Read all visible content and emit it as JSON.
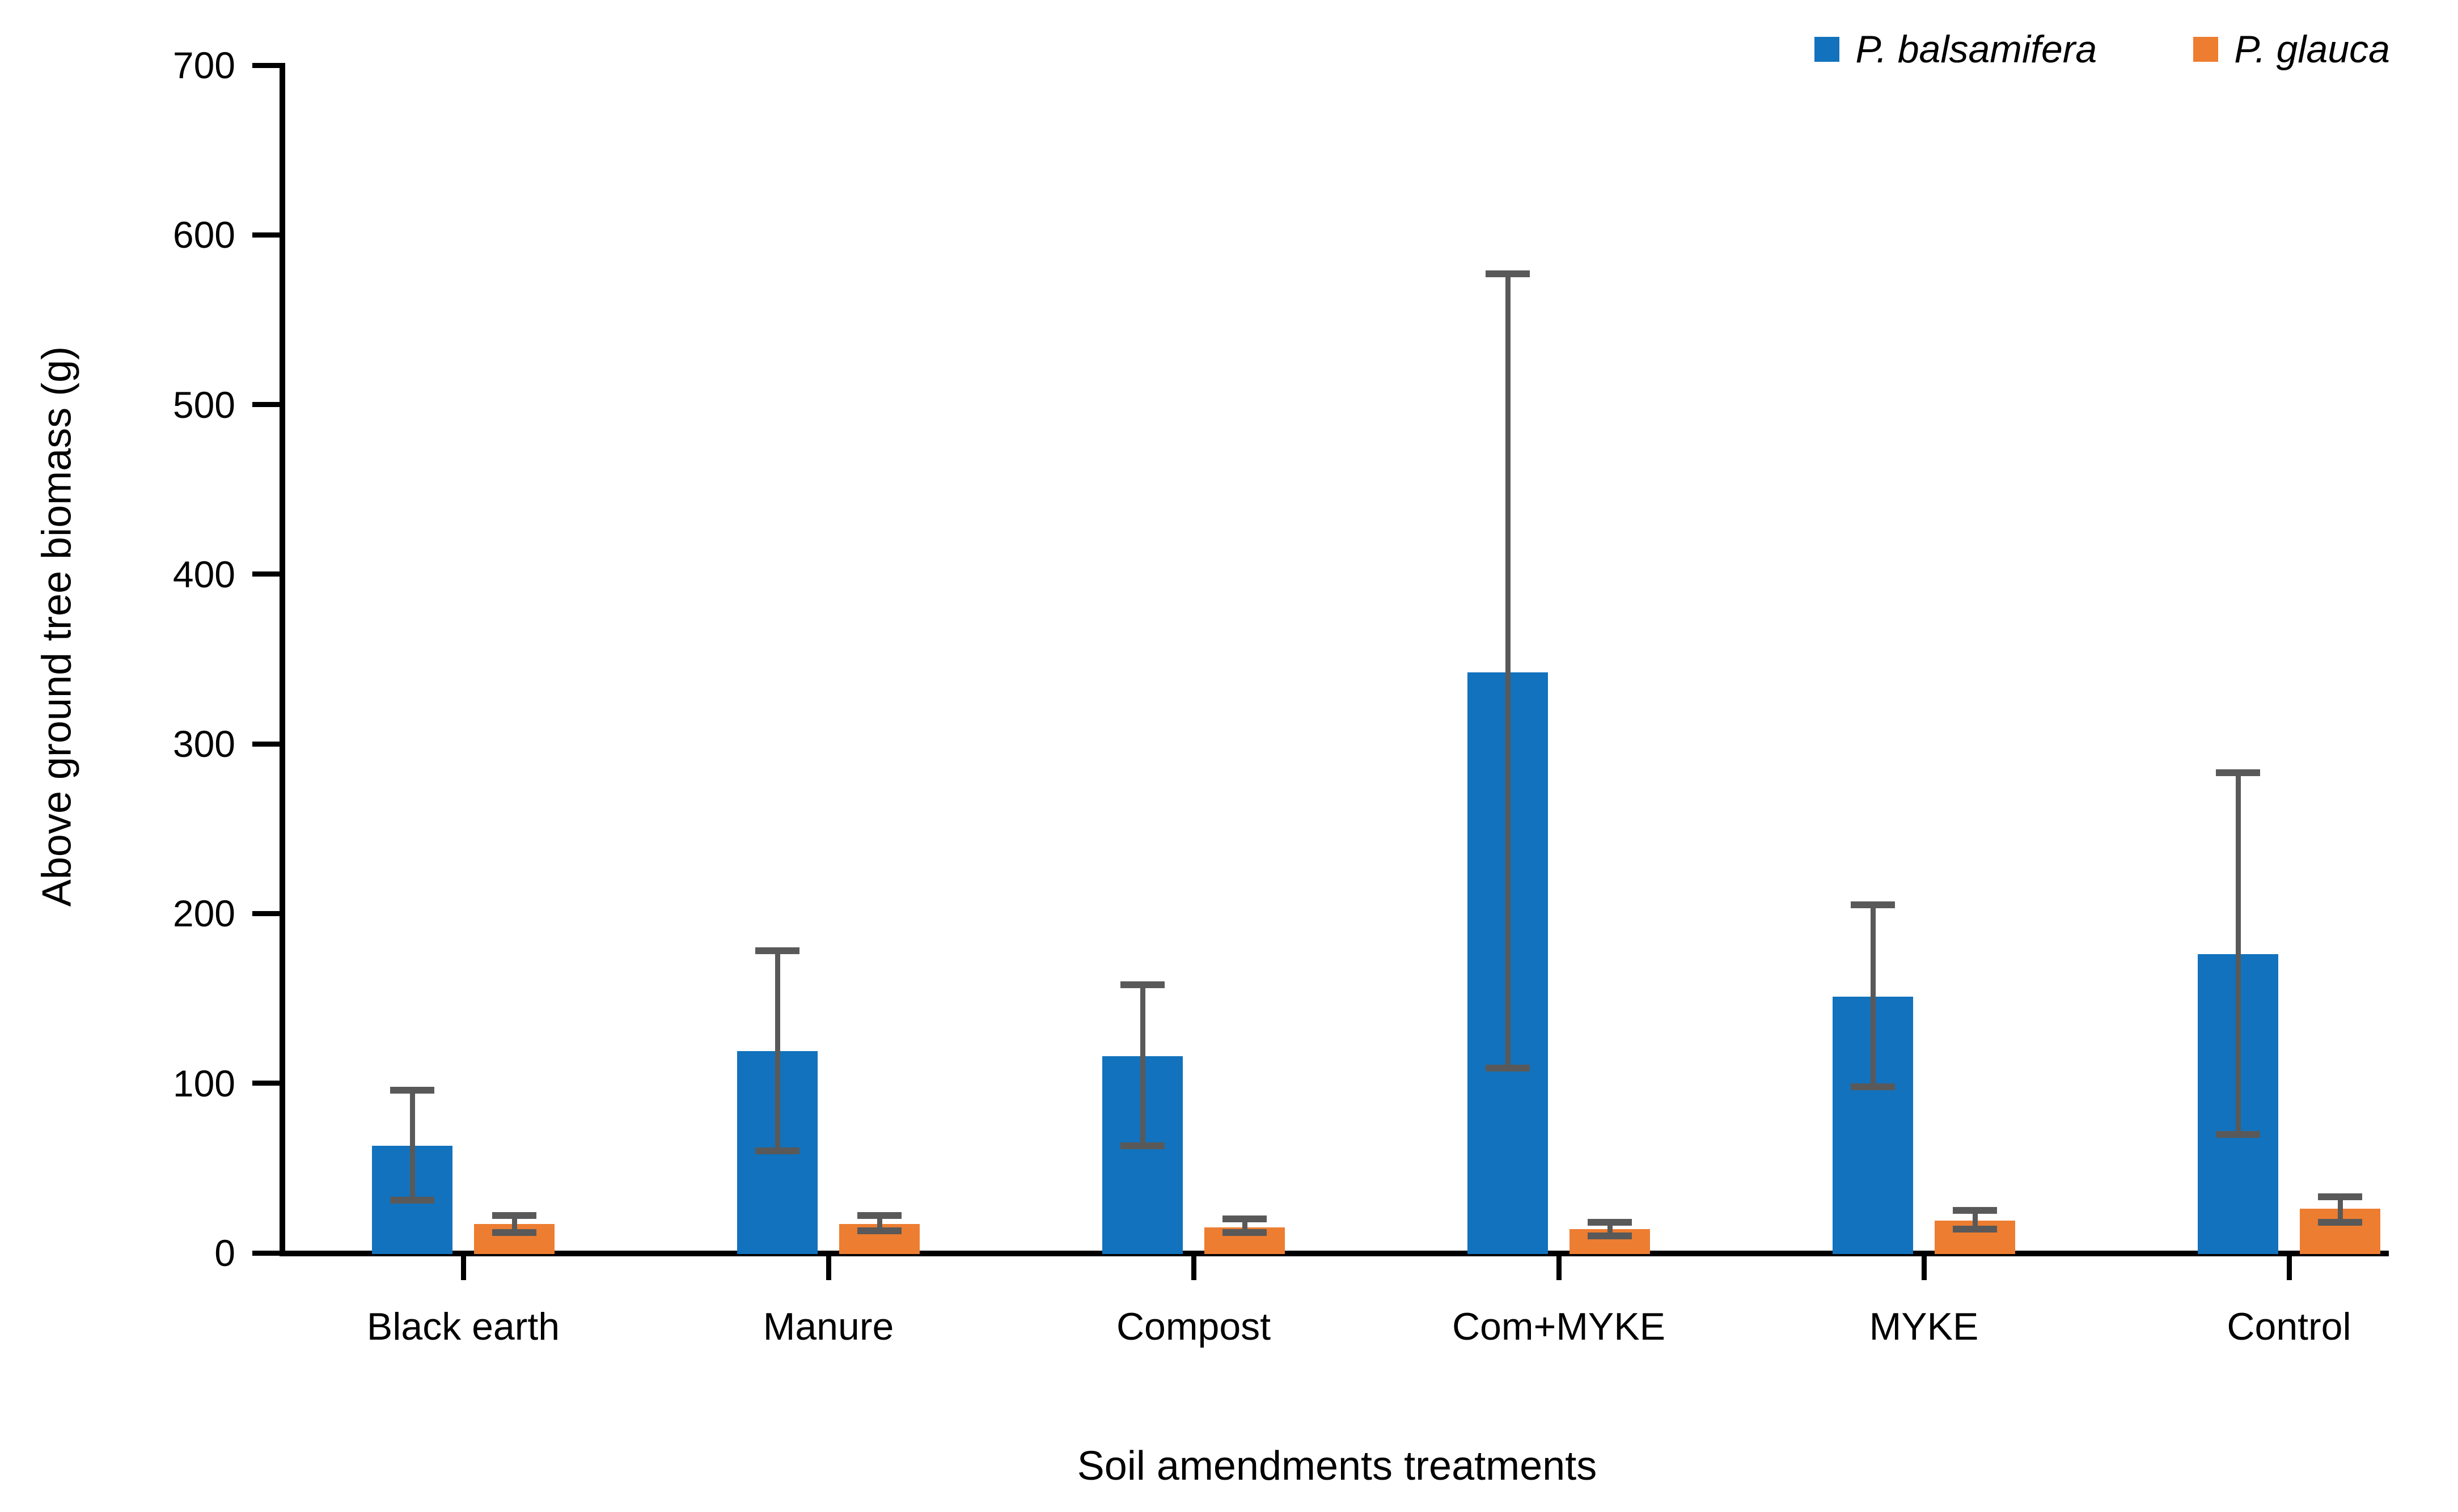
{
  "chart_data": {
    "type": "bar",
    "title": "",
    "categories": [
      "Black earth",
      "Manure",
      "Compost",
      "Com+MYKE",
      "MYKE",
      "Control"
    ],
    "series": [
      {
        "name": "P. balsamifera",
        "color": "#1272BD",
        "values": [
          63,
          119,
          116,
          342,
          151,
          176
        ],
        "err_low": [
          31,
          60,
          63,
          109,
          98,
          70
        ],
        "err_high": [
          96,
          178,
          158,
          577,
          205,
          283
        ]
      },
      {
        "name": "P. glauca",
        "color": "#ED7D31",
        "values": [
          17,
          17,
          15,
          14,
          19,
          26
        ],
        "err_low": [
          12,
          13,
          12,
          10,
          14,
          18
        ],
        "err_high": [
          22,
          22,
          20,
          18,
          25,
          33
        ]
      }
    ],
    "xlabel": "Soil amendments treatments",
    "ylabel": "Above ground tree biomass (g)",
    "ylim": [
      0,
      700
    ],
    "yticks": [
      0,
      100,
      200,
      300,
      400,
      500,
      600,
      700
    ],
    "grid": false,
    "legend_position": "top-right",
    "error_bar_color": "#595959",
    "axis_color": "#000000",
    "background_color": "#ffffff"
  }
}
